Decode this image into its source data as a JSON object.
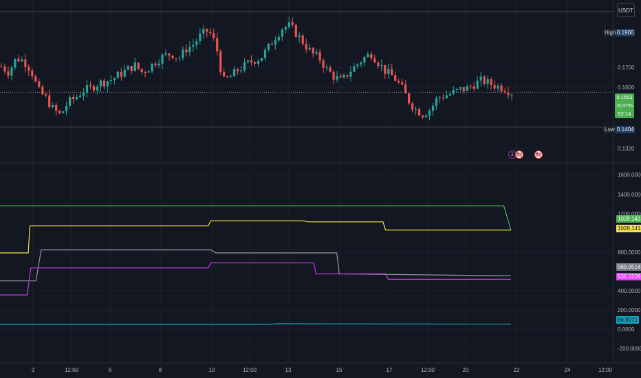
{
  "currency": "USDT",
  "price_axis": {
    "ticks": [
      "0.1700",
      "0.1600",
      "0.1320"
    ],
    "high": {
      "label": "High",
      "value": "0.1900"
    },
    "low": {
      "label": "Low",
      "value": "0.1404"
    },
    "current": {
      "price": "0.1553",
      "change": "-5.07%",
      "countdown": "52:14"
    }
  },
  "indicator_axis": {
    "ticks": [
      "1600.0000",
      "1400.0000",
      "1200.0000",
      "800.0000",
      "400.0000",
      "200.0000",
      "0.0000",
      "-200.0000"
    ],
    "tags": {
      "green": "1028.1418",
      "yellow": "1028.1418",
      "gray": "569.9514",
      "magenta": "536.0208",
      "teal": "86.8071"
    }
  },
  "time_axis": [
    "3",
    "12:00",
    "6",
    "8",
    "10",
    "12:00",
    "13",
    "15",
    "17",
    "12:00",
    "20",
    "22",
    "24",
    "12:00"
  ],
  "events": [
    "2",
    "🇺🇸",
    "🇺🇸"
  ],
  "colors": {
    "background": "#131722",
    "up": "#26a69a",
    "down": "#ef5350",
    "green_line": "#4caf50",
    "yellow_line": "#f4e04d",
    "gray_line": "#9598a1",
    "magenta_line": "#c13fe0",
    "teal_line": "#13a2ba"
  },
  "chart_data": [
    {
      "type": "candlestick",
      "title": "",
      "y_range": [
        0.125,
        0.195
      ],
      "high": 0.19,
      "low": 0.1404,
      "last": 0.1553,
      "closes": [
        0.1665,
        0.164,
        0.17,
        0.169,
        0.165,
        0.156,
        0.153,
        0.148,
        0.1455,
        0.151,
        0.153,
        0.156,
        0.157,
        0.159,
        0.16,
        0.161,
        0.163,
        0.165,
        0.167,
        0.164,
        0.166,
        0.169,
        0.171,
        0.172,
        0.17,
        0.174,
        0.176,
        0.18,
        0.182,
        0.176,
        0.16,
        0.162,
        0.165,
        0.167,
        0.169,
        0.17,
        0.174,
        0.179,
        0.183,
        0.184,
        0.18,
        0.176,
        0.172,
        0.17,
        0.165,
        0.162,
        0.16,
        0.164,
        0.167,
        0.17,
        0.172,
        0.168,
        0.164,
        0.162,
        0.158,
        0.152,
        0.148,
        0.146,
        0.148,
        0.153,
        0.154,
        0.155,
        0.1565,
        0.157,
        0.159,
        0.1605,
        0.159,
        0.158,
        0.157,
        0.1553
      ]
    },
    {
      "type": "line",
      "title": "",
      "y_range": [
        -300,
        1700
      ],
      "x_range": [
        0,
        100
      ],
      "series": [
        {
          "color": "#4caf50",
          "x": [
            0,
            98,
            99.4
          ],
          "y": [
            1270,
            1270,
            1028.14
          ]
        },
        {
          "color": "#f4e04d",
          "x": [
            0,
            5.5,
            5.8,
            40.5,
            41,
            59,
            60,
            74.5,
            75,
            99.4
          ],
          "y": [
            800,
            800,
            1070,
            1070,
            1120,
            1120,
            1110,
            1110,
            1028.14,
            1028.14
          ]
        },
        {
          "color": "#9598a1",
          "x": [
            0,
            7,
            8,
            41,
            42,
            65.5,
            66,
            99.4
          ],
          "y": [
            520,
            520,
            830,
            830,
            800,
            800,
            590,
            569.95
          ]
        },
        {
          "color": "#c13fe0",
          "x": [
            0,
            5.3,
            6,
            40.5,
            41,
            61,
            61.5,
            75,
            75.5,
            99.4
          ],
          "y": [
            380,
            380,
            650,
            650,
            700,
            700,
            590,
            590,
            536,
            536
          ]
        },
        {
          "color": "#13a2ba",
          "x": [
            0,
            52,
            54,
            99.4
          ],
          "y": [
            85,
            85,
            92,
            86.81
          ]
        }
      ]
    }
  ]
}
